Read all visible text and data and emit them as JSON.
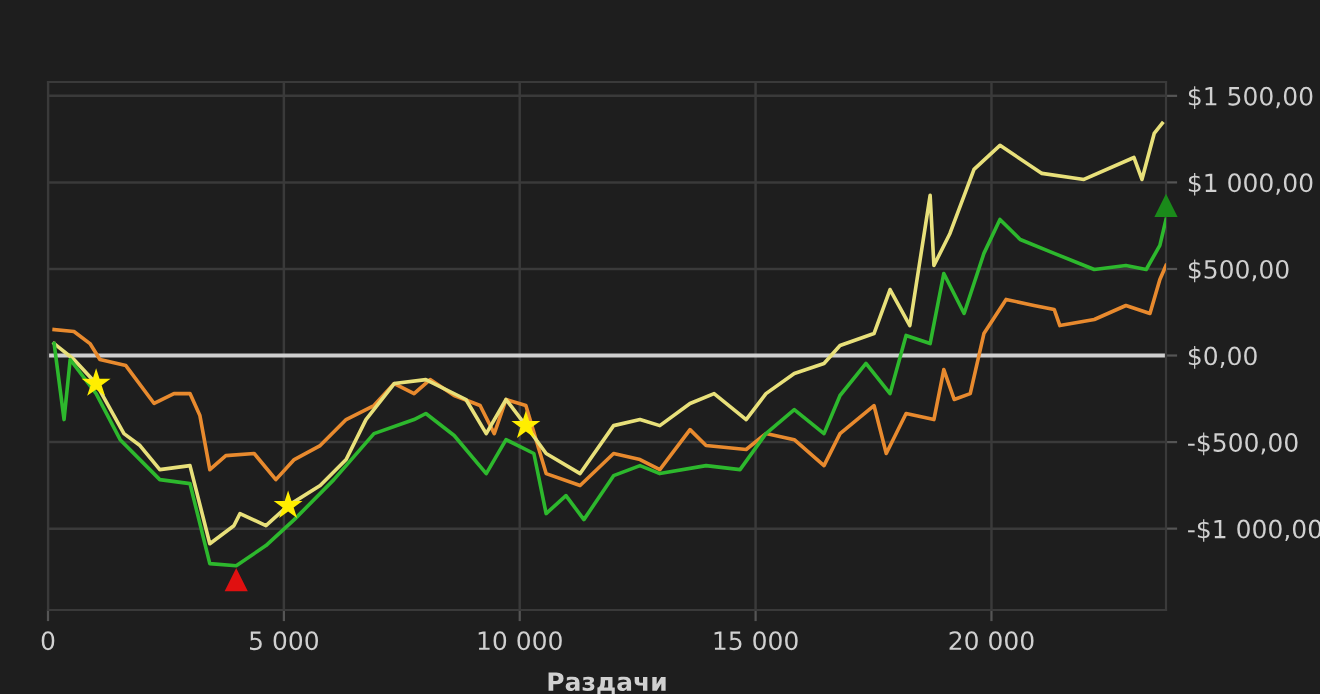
{
  "chart_data": {
    "type": "line",
    "xlabel": "Раздачи",
    "legend": false,
    "grid": true,
    "line_style": "solid",
    "xlim": [
      0,
      23700
    ],
    "ylim": [
      -1470,
      1580
    ],
    "xticks": [
      0,
      {
        "value": 5000,
        "label": "5 000"
      },
      {
        "value": 10000,
        "label": "10 000"
      },
      {
        "value": 15000,
        "label": "15 000"
      },
      {
        "value": 20000,
        "label": "20 000"
      }
    ],
    "yticks": [
      {
        "value": -1000,
        "label": "-$1 000,00"
      },
      {
        "value": -500,
        "label": "-$500,00"
      },
      {
        "value": 0,
        "label": "$0,00"
      },
      {
        "value": 500,
        "label": "$500,00"
      },
      {
        "value": 1000,
        "label": "$1 000,00"
      },
      {
        "value": 1500,
        "label": "$1 500,00"
      }
    ],
    "ref_lines": [
      {
        "axis": "y",
        "value": 0,
        "color": "#cfcfcf"
      }
    ],
    "series": [
      {
        "color": "#e88a2e",
        "x": [
          130,
          550,
          890,
          1100,
          1650,
          2250,
          2670,
          3010,
          3220,
          3430,
          3770,
          4370,
          4830,
          5220,
          5770,
          6320,
          6910,
          7340,
          7760,
          8100,
          8610,
          9160,
          9460,
          9710,
          10130,
          10560,
          11280,
          11990,
          12550,
          12970,
          13610,
          13950,
          14800,
          15220,
          15820,
          16450,
          16790,
          17510,
          17770,
          18190,
          18780,
          18990,
          19210,
          19550,
          19840,
          20310,
          20900,
          21330,
          21450,
          22180,
          22850,
          23360,
          23570,
          23700
        ],
        "values": [
          150,
          139,
          69,
          -23,
          -58,
          -277,
          -220,
          -220,
          -347,
          -659,
          -578,
          -566,
          -717,
          -601,
          -520,
          -370,
          -289,
          -162,
          -220,
          -139,
          -231,
          -289,
          -451,
          -254,
          -289,
          -682,
          -751,
          -566,
          -601,
          -659,
          -428,
          -520,
          -543,
          -451,
          -486,
          -636,
          -451,
          -289,
          -566,
          -335,
          -370,
          -81,
          -254,
          -220,
          127,
          324,
          289,
          266,
          173,
          208,
          289,
          243,
          439,
          520
        ]
      },
      {
        "color": "#e8e07a",
        "x": [
          130,
          550,
          1020,
          1610,
          1950,
          2370,
          3010,
          3430,
          3940,
          4070,
          4620,
          5090,
          5770,
          6320,
          6740,
          7340,
          8010,
          8860,
          9290,
          9710,
          10130,
          10560,
          11280,
          11990,
          12550,
          12970,
          13610,
          14120,
          14800,
          15220,
          15820,
          16450,
          16790,
          17510,
          17850,
          18270,
          18700,
          18780,
          19120,
          19630,
          20180,
          21070,
          21960,
          23020,
          23190,
          23450,
          23620
        ],
        "values": [
          69,
          -23,
          -162,
          -451,
          -520,
          -659,
          -636,
          -1087,
          -983,
          -913,
          -983,
          -867,
          -751,
          -601,
          -370,
          -162,
          -139,
          -254,
          -451,
          -254,
          -405,
          -566,
          -682,
          -405,
          -370,
          -405,
          -277,
          -220,
          -370,
          -220,
          -104,
          -46,
          58,
          127,
          381,
          173,
          925,
          520,
          705,
          1075,
          1214,
          1052,
          1017,
          1144,
          1017,
          1283,
          1341
        ]
      },
      {
        "color": "#2db82d",
        "x": [
          130,
          340,
          470,
          1020,
          1530,
          2370,
          3010,
          3430,
          3990,
          4620,
          5220,
          6060,
          6910,
          7760,
          8010,
          8610,
          9290,
          9710,
          10300,
          10560,
          10980,
          11360,
          11990,
          12550,
          12970,
          13950,
          14670,
          15220,
          15820,
          16450,
          16790,
          17340,
          17850,
          18190,
          18700,
          18990,
          19420,
          19840,
          20180,
          20610,
          21330,
          22180,
          22850,
          23280,
          23570,
          23700
        ],
        "values": [
          69,
          -370,
          -23,
          -220,
          -486,
          -717,
          -740,
          -1202,
          -1214,
          -1098,
          -948,
          -717,
          -451,
          -370,
          -335,
          -462,
          -682,
          -486,
          -566,
          -913,
          -809,
          -948,
          -694,
          -636,
          -682,
          -636,
          -659,
          -451,
          -312,
          -451,
          -231,
          -46,
          -220,
          116,
          69,
          474,
          243,
          590,
          786,
          670,
          590,
          497,
          520,
          497,
          636,
          786
        ]
      },
      {
        "type": "scatter",
        "marker": "star",
        "color": "#ffee00",
        "x": [
          1020,
          5090,
          10130
        ],
        "values": [
          -162,
          -867,
          -405
        ]
      },
      {
        "type": "scatter",
        "marker": "triangle",
        "color": "#e01010",
        "x": [
          3990
        ],
        "values": [
          -1295
        ]
      },
      {
        "type": "scatter",
        "marker": "triangle",
        "color": "#1a8a1a",
        "x": [
          23700
        ],
        "values": [
          867
        ]
      }
    ]
  }
}
